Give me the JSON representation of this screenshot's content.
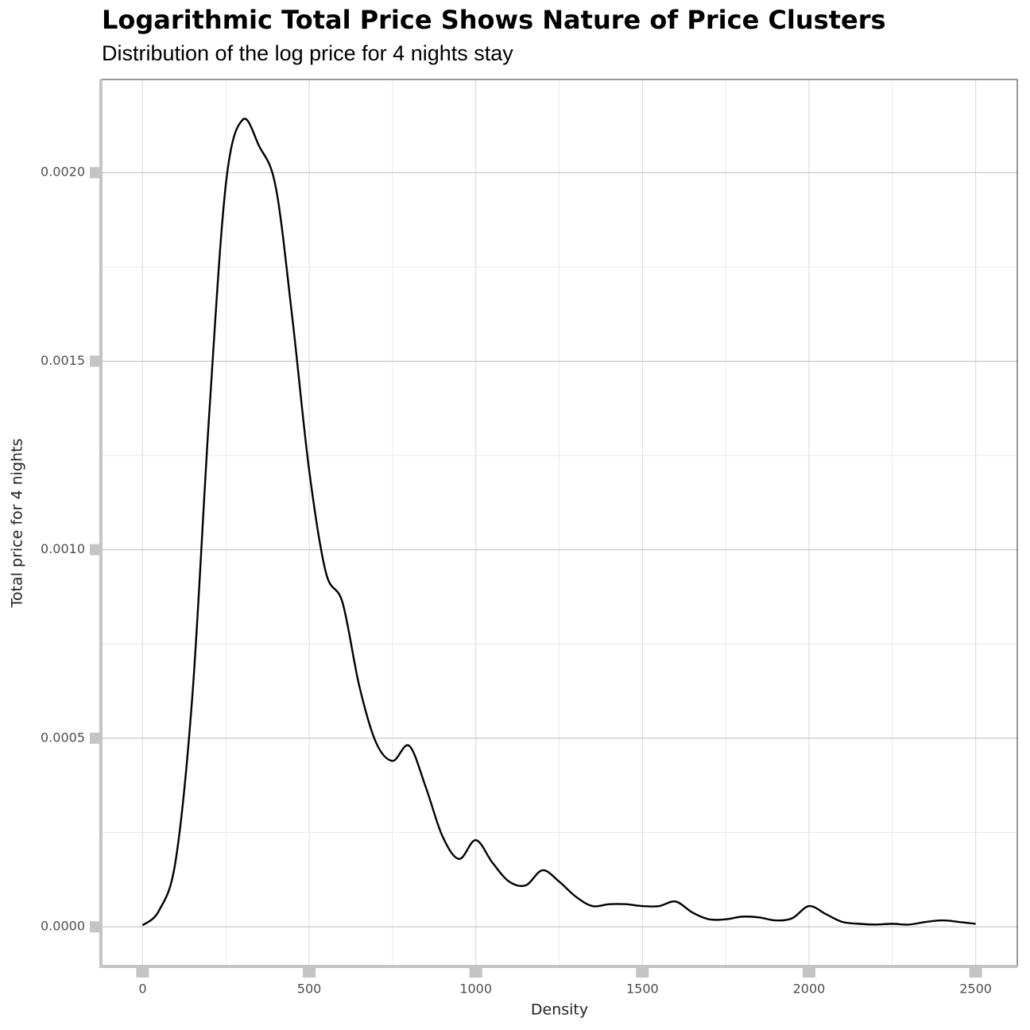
{
  "chart_data": {
    "type": "line",
    "title": "Logarithmic Total Price Shows Nature of Price Clusters",
    "subtitle": "Distribution of the log price for 4 nights stay",
    "x_label": "Density",
    "y_label": "Total price for 4 nights",
    "x": [
      0,
      50,
      100,
      150,
      200,
      250,
      300,
      350,
      400,
      450,
      500,
      550,
      600,
      650,
      700,
      750,
      800,
      850,
      900,
      950,
      1000,
      1050,
      1100,
      1150,
      1200,
      1250,
      1300,
      1350,
      1400,
      1450,
      1500,
      1550,
      1600,
      1650,
      1700,
      1750,
      1800,
      1850,
      1900,
      1950,
      2000,
      2050,
      2100,
      2150,
      2200,
      2250,
      2300,
      2350,
      2400,
      2450,
      2500
    ],
    "series": [
      {
        "color": "#000000",
        "values": [
          4e-06,
          4.4e-05,
          0.00018,
          0.00062,
          0.00136,
          0.00197,
          0.00214,
          0.00207,
          0.00196,
          0.00161,
          0.00121,
          0.00094,
          0.00086,
          0.00064,
          0.00049,
          0.00044,
          0.00048,
          0.00037,
          0.00024,
          0.00018,
          0.00023,
          0.00017,
          0.00012,
          0.00011,
          0.00015,
          0.00012,
          8e-05,
          5.5e-05,
          6e-05,
          6e-05,
          5.5e-05,
          5.5e-05,
          6.7e-05,
          3.8e-05,
          2e-05,
          2e-05,
          2.7e-05,
          2.5e-05,
          1.7e-05,
          2.3e-05,
          5.5e-05,
          3.4e-05,
          1.3e-05,
          8e-06,
          6e-06,
          8e-06,
          6e-06,
          1.3e-05,
          1.7e-05,
          1.3e-05,
          8e-06
        ]
      }
    ],
    "xlim": [
      -125,
      2625
    ],
    "ylim": [
      -0.000105,
      0.002247
    ],
    "xticks": [
      0,
      500,
      1000,
      1500,
      2000,
      2500
    ],
    "yticks": [
      {
        "value": 0,
        "label": "0.0000"
      },
      {
        "value": 0.0005,
        "label": "0.0005"
      },
      {
        "value": 0.001,
        "label": "0.0010"
      },
      {
        "value": 0.0015,
        "label": "0.0015"
      },
      {
        "value": 0.002,
        "label": "0.0020"
      }
    ],
    "grid": true
  }
}
